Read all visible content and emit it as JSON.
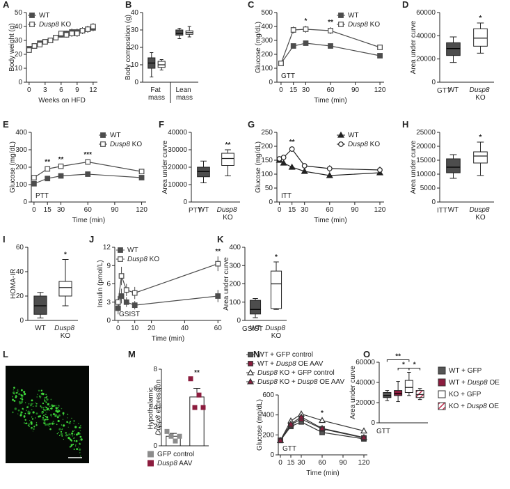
{
  "chart_data": [
    {
      "panel": "A",
      "type": "line",
      "xlabel": "Weeks on HFD",
      "ylabel": "Body weight (g)",
      "x": [
        0,
        1,
        2,
        3,
        4,
        5,
        6,
        7,
        8,
        9,
        10,
        11,
        12
      ],
      "xlim": [
        -0.5,
        12.8
      ],
      "xticks": [
        0,
        3,
        6,
        9,
        12
      ],
      "ylim": [
        0,
        50
      ],
      "yticks": [
        0,
        10,
        20,
        30,
        40,
        50
      ],
      "legend": "upper left",
      "series": [
        {
          "name": "WT",
          "color": "#4d4d4d",
          "fill": "#4d4d4d",
          "marker": "square",
          "values": [
            24,
            26,
            28,
            29,
            30,
            32,
            34,
            35,
            36,
            36,
            37,
            38,
            39
          ],
          "errors": [
            1,
            1,
            1,
            1.5,
            1.5,
            1.5,
            2,
            2,
            2.5,
            2.5,
            2.5,
            2.5,
            2.5
          ]
        },
        {
          "name": "Dusp8 KO",
          "color": "#4d4d4d",
          "fill": "#ffffff",
          "marker": "square",
          "values": [
            23,
            26,
            27,
            29,
            30,
            32,
            35,
            34,
            35,
            35,
            37,
            38,
            40
          ],
          "errors": [
            1,
            1,
            1,
            1.5,
            1.5,
            1.5,
            2,
            2,
            2.5,
            2.5,
            2.5,
            2.5,
            2.5
          ]
        }
      ]
    },
    {
      "panel": "B",
      "type": "box",
      "ylabel": "Body composition (g)",
      "ylim": [
        0,
        40
      ],
      "yticks": [
        0,
        10,
        20,
        30,
        40
      ],
      "categories": [
        "Fat mass",
        "Lean mass"
      ],
      "separators": true,
      "boxes": [
        {
          "color": "#4d4d4d",
          "min": 3,
          "q1": 8,
          "median": 11,
          "q3": 14,
          "max": 17
        },
        {
          "color": "#ffffff",
          "min": 7,
          "q1": 8.5,
          "median": 10,
          "q3": 12,
          "max": 13
        },
        {
          "color": "#4d4d4d",
          "min": 25,
          "q1": 27,
          "median": 28,
          "q3": 30,
          "max": 31
        },
        {
          "color": "#ffffff",
          "min": 26,
          "q1": 27.5,
          "median": 28.5,
          "q3": 29.5,
          "max": 32
        }
      ]
    },
    {
      "panel": "C",
      "type": "line",
      "xlabel": "Time (min)",
      "ylabel": "Glucose (mg/dL)",
      "note": "GTT",
      "x": [
        0,
        15,
        30,
        60,
        120
      ],
      "xlim": [
        -5,
        125
      ],
      "xticks": [
        0,
        15,
        30,
        60,
        90,
        120
      ],
      "ylim": [
        0,
        500
      ],
      "yticks": [
        0,
        100,
        200,
        300,
        400,
        500
      ],
      "legend": "upper right",
      "series": [
        {
          "name": "WT",
          "color": "#4d4d4d",
          "fill": "#4d4d4d",
          "marker": "square",
          "values": [
            135,
            260,
            280,
            260,
            190
          ],
          "errors": [
            8,
            15,
            12,
            12,
            10
          ]
        },
        {
          "name": "Dusp8 KO",
          "color": "#4d4d4d",
          "fill": "#ffffff",
          "marker": "square",
          "values": [
            135,
            375,
            380,
            370,
            250
          ],
          "errors": [
            10,
            25,
            25,
            25,
            20
          ]
        }
      ],
      "annotations": [
        {
          "text": "*",
          "x": 30
        },
        {
          "text": "**",
          "x": 60
        }
      ]
    },
    {
      "panel": "D",
      "type": "box",
      "ylabel": "Area under curve",
      "note": "GTT",
      "ylim": [
        0,
        60000
      ],
      "yticks": [
        0,
        20000,
        40000,
        60000
      ],
      "categories": [
        "WT",
        "Dusp8 KO"
      ],
      "boxes": [
        {
          "color": "#4d4d4d",
          "min": 17000,
          "q1": 23000,
          "median": 29000,
          "q3": 34000,
          "max": 39000
        },
        {
          "color": "#ffffff",
          "min": 25000,
          "q1": 31000,
          "median": 38000,
          "q3": 46000,
          "max": 51000
        }
      ],
      "annotations": [
        {
          "text": "*",
          "box": 1
        }
      ]
    },
    {
      "panel": "E",
      "type": "line",
      "xlabel": "Time (min)",
      "ylabel": "Glucose (mg/dL)",
      "note": "PTT",
      "x": [
        0,
        15,
        30,
        60,
        120
      ],
      "xlim": [
        -3,
        125
      ],
      "xticks": [
        0,
        15,
        30,
        60,
        90,
        120
      ],
      "ylim": [
        0,
        400
      ],
      "yticks": [
        0,
        100,
        200,
        300,
        400
      ],
      "legend": "upper right",
      "series": [
        {
          "name": "WT",
          "color": "#4d4d4d",
          "fill": "#4d4d4d",
          "marker": "square",
          "values": [
            105,
            135,
            150,
            160,
            140
          ],
          "errors": [
            10,
            10,
            10,
            10,
            12
          ]
        },
        {
          "name": "Dusp8 KO",
          "color": "#4d4d4d",
          "fill": "#ffffff",
          "marker": "square",
          "values": [
            140,
            190,
            205,
            230,
            175
          ],
          "errors": [
            12,
            12,
            12,
            15,
            15
          ]
        }
      ],
      "annotations": [
        {
          "text": "**",
          "x": 15
        },
        {
          "text": "**",
          "x": 30
        },
        {
          "text": "***",
          "x": 60
        }
      ]
    },
    {
      "panel": "F",
      "type": "box",
      "ylabel": "Area under curve",
      "note": "PTT",
      "ylim": [
        0,
        40000
      ],
      "yticks": [
        0,
        10000,
        20000,
        30000,
        40000
      ],
      "categories": [
        "WT",
        "Dusp8 KO"
      ],
      "boxes": [
        {
          "color": "#4d4d4d",
          "min": 11000,
          "q1": 14500,
          "median": 17500,
          "q3": 20000,
          "max": 23500
        },
        {
          "color": "#ffffff",
          "min": 15000,
          "q1": 21000,
          "median": 25000,
          "q3": 28000,
          "max": 30000
        }
      ],
      "annotations": [
        {
          "text": "**",
          "box": 1
        }
      ]
    },
    {
      "panel": "G",
      "type": "line",
      "xlabel": "Time (min)",
      "ylabel": "Glucose (mg/dL)",
      "note": "ITT",
      "x": [
        0,
        5,
        15,
        30,
        60,
        120
      ],
      "xlim": [
        -3,
        125
      ],
      "xticks": [
        0,
        15,
        30,
        60,
        90,
        120
      ],
      "ylim": [
        0,
        250
      ],
      "yticks": [
        0,
        50,
        100,
        150,
        200,
        250
      ],
      "legend": "upper right",
      "series": [
        {
          "name": "WT",
          "color": "#222222",
          "fill": "#222222",
          "marker": "triangle",
          "values": [
            150,
            140,
            125,
            110,
            95,
            105
          ],
          "errors": [
            5,
            5,
            6,
            5,
            5,
            6
          ]
        },
        {
          "name": "Dusp8 KO",
          "color": "#222222",
          "fill": "#ffffff",
          "marker": "circle",
          "values": [
            155,
            160,
            190,
            130,
            120,
            115
          ],
          "errors": [
            6,
            8,
            8,
            8,
            12,
            12
          ]
        }
      ],
      "annotations": [
        {
          "text": "**",
          "x": 15
        }
      ]
    },
    {
      "panel": "H",
      "type": "box",
      "ylabel": "Area under curve",
      "note": "ITT",
      "ylim": [
        0,
        25000
      ],
      "yticks": [
        0,
        5000,
        10000,
        15000,
        20000,
        25000
      ],
      "categories": [
        "WT",
        "Dusp8 KO"
      ],
      "boxes": [
        {
          "color": "#4d4d4d",
          "min": 8500,
          "q1": 10500,
          "median": 12500,
          "q3": 15500,
          "max": 17000
        },
        {
          "color": "#ffffff",
          "min": 9500,
          "q1": 14000,
          "median": 16500,
          "q3": 18000,
          "max": 21500
        }
      ],
      "annotations": [
        {
          "text": "*",
          "box": 1
        }
      ]
    },
    {
      "panel": "I",
      "type": "box",
      "ylabel": "HOMA-IR",
      "ylim": [
        0,
        60
      ],
      "yticks": [
        0,
        20,
        40,
        60
      ],
      "categories": [
        "WT",
        "Dusp8 KO"
      ],
      "boxes": [
        {
          "color": "#4d4d4d",
          "min": 2,
          "q1": 5,
          "median": 12,
          "q3": 20,
          "max": 23
        },
        {
          "color": "#ffffff",
          "min": 12,
          "q1": 20,
          "median": 27,
          "q3": 32,
          "max": 50
        }
      ],
      "annotations": [
        {
          "text": "*",
          "box": 1
        }
      ]
    },
    {
      "panel": "J",
      "type": "line",
      "xlabel": "Time (min)",
      "ylabel": "Insulin (pmol/L)",
      "note": "GSIST",
      "x": [
        0,
        2,
        5,
        10,
        60
      ],
      "xlim": [
        -2,
        62
      ],
      "xticks": [
        0,
        10,
        20,
        40,
        60
      ],
      "ylim": [
        0,
        12
      ],
      "yticks": [
        0,
        3,
        6,
        9,
        12
      ],
      "legend": "upper left",
      "series": [
        {
          "name": "WT",
          "color": "#4d4d4d",
          "fill": "#4d4d4d",
          "marker": "square",
          "values": [
            2,
            4,
            3,
            2.5,
            4
          ],
          "errors": [
            1,
            1.2,
            0.8,
            0.7,
            1
          ]
        },
        {
          "name": "Dusp8 KO",
          "color": "#4d4d4d",
          "fill": "#ffffff",
          "marker": "square",
          "values": [
            3,
            7.3,
            5,
            4.5,
            9.3
          ],
          "errors": [
            1,
            1.5,
            1,
            1,
            1.2
          ]
        }
      ],
      "annotations": [
        {
          "text": "**",
          "x": 60
        }
      ]
    },
    {
      "panel": "K",
      "type": "box",
      "ylabel": "Area under curve",
      "note": "GSIST",
      "ylim": [
        0,
        400
      ],
      "yticks": [
        0,
        100,
        200,
        300,
        400
      ],
      "categories": [
        "WT",
        "Dusp8 KO"
      ],
      "boxes": [
        {
          "color": "#4d4d4d",
          "min": 15,
          "q1": 35,
          "median": 60,
          "q3": 110,
          "max": 120
        },
        {
          "color": "#ffffff",
          "min": 60,
          "q1": 65,
          "median": 200,
          "q3": 270,
          "max": 320
        }
      ],
      "annotations": [
        {
          "text": "*",
          "box": 1
        }
      ]
    },
    {
      "panel": "L",
      "type": "image"
    },
    {
      "panel": "M",
      "type": "bar",
      "ylabel": "Hypothalamic Dusp8 expression",
      "ylim": [
        0,
        8
      ],
      "yticks": [
        0,
        2,
        4,
        6,
        8
      ],
      "legend": "below",
      "categories": [
        "GFP control",
        "Dusp8 AAV"
      ],
      "colors": [
        "#8c8c8c",
        "#8c1c3e"
      ],
      "values": [
        1.0,
        5.1
      ],
      "errors": [
        0.3,
        0.9
      ],
      "points": [
        [
          1.5,
          1.0,
          0.5,
          1.0
        ],
        [
          7.0,
          4.0,
          5.3,
          4.0
        ]
      ],
      "annotations": [
        {
          "text": "**",
          "bar": 1
        }
      ]
    },
    {
      "panel": "N",
      "type": "line",
      "xlabel": "Time (min)",
      "ylabel": "Glucose (mg/dL)",
      "note": "GTT",
      "x": [
        0,
        15,
        30,
        60,
        120
      ],
      "xlim": [
        -3,
        125
      ],
      "xticks": [
        0,
        15,
        30,
        60,
        90,
        120
      ],
      "ylim": [
        0,
        600
      ],
      "yticks": [
        0,
        200,
        400,
        600
      ],
      "legend": "above",
      "series": [
        {
          "name": "WT + GFP control",
          "color": "#333333",
          "fill": "#555555",
          "marker": "square",
          "values": [
            145,
            285,
            330,
            225,
            160
          ],
          "errors": [
            8,
            15,
            15,
            20,
            15
          ]
        },
        {
          "name": "WT + Dusp8 OE AAV",
          "color": "#333333",
          "fill": "#8c1c3e",
          "marker": "square",
          "values": [
            145,
            300,
            360,
            260,
            170
          ],
          "errors": [
            8,
            15,
            15,
            20,
            15
          ]
        },
        {
          "name": "Dusp8 KO + GFP control",
          "color": "#333333",
          "fill": "#ffffff",
          "marker": "triangle",
          "values": [
            145,
            340,
            410,
            345,
            240
          ],
          "errors": [
            8,
            20,
            20,
            25,
            20
          ]
        },
        {
          "name": "Dusp8 KO + Dusp8 OE AAV",
          "color": "#333333",
          "fill": "#8c1c3e",
          "marker": "triangle",
          "values": [
            145,
            310,
            380,
            265,
            175
          ],
          "errors": [
            8,
            15,
            15,
            20,
            15
          ]
        }
      ],
      "annotations": [
        {
          "text": "*",
          "x": 60
        }
      ]
    },
    {
      "panel": "O",
      "type": "box",
      "ylabel": "Area under curve",
      "note": "GTT",
      "ylim": [
        0,
        60000
      ],
      "yticks": [
        0,
        20000,
        40000,
        60000
      ],
      "legend": "right",
      "boxes": [
        {
          "name": "WT + GFP",
          "color": "#555555",
          "min": 22000,
          "q1": 25000,
          "median": 27000,
          "q3": 30000,
          "max": 32000
        },
        {
          "name": "WT + Dusp8 OE",
          "color": "#8c1c3e",
          "min": 21000,
          "q1": 27000,
          "median": 29000,
          "q3": 32000,
          "max": 41000
        },
        {
          "name": "KO + GFP",
          "color": "#ffffff",
          "min": 27000,
          "q1": 30000,
          "median": 35000,
          "q3": 42000,
          "max": 50000
        },
        {
          "name": "KO + Dusp8 OE",
          "color": "#ffffff",
          "hatch": "#c03050",
          "min": 23000,
          "q1": 25000,
          "median": 28000,
          "q3": 32000,
          "max": 34000
        }
      ],
      "annotations": [
        {
          "text": "**",
          "from": 0,
          "to": 2
        },
        {
          "text": "*",
          "from": 1,
          "to": 2
        },
        {
          "text": "*",
          "from": 2,
          "to": 3
        }
      ]
    }
  ]
}
